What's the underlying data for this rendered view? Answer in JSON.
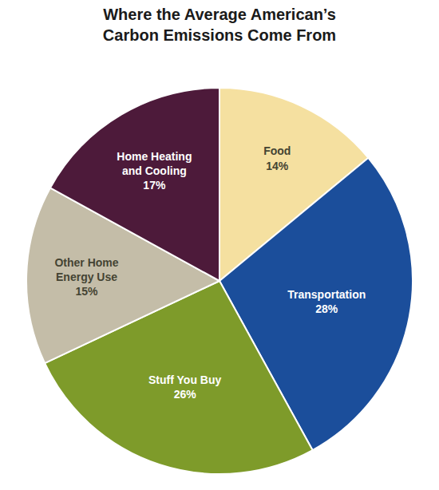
{
  "chart_data": {
    "type": "pie",
    "title": "Where the Average American’s\nCarbon Emissions Come From",
    "categories": [
      "Food\n14%",
      "Transportation\n28%",
      "Stuff You Buy\n26%",
      "Other Home\nEnergy Use\n15%",
      "Home Heating\nand Cooling\n17%"
    ],
    "values": [
      14,
      28,
      26,
      15,
      17
    ],
    "colors": [
      "#F5E0A0",
      "#1B4E9B",
      "#7E9B2A",
      "#C4BDA8",
      "#4D1A3A"
    ]
  }
}
